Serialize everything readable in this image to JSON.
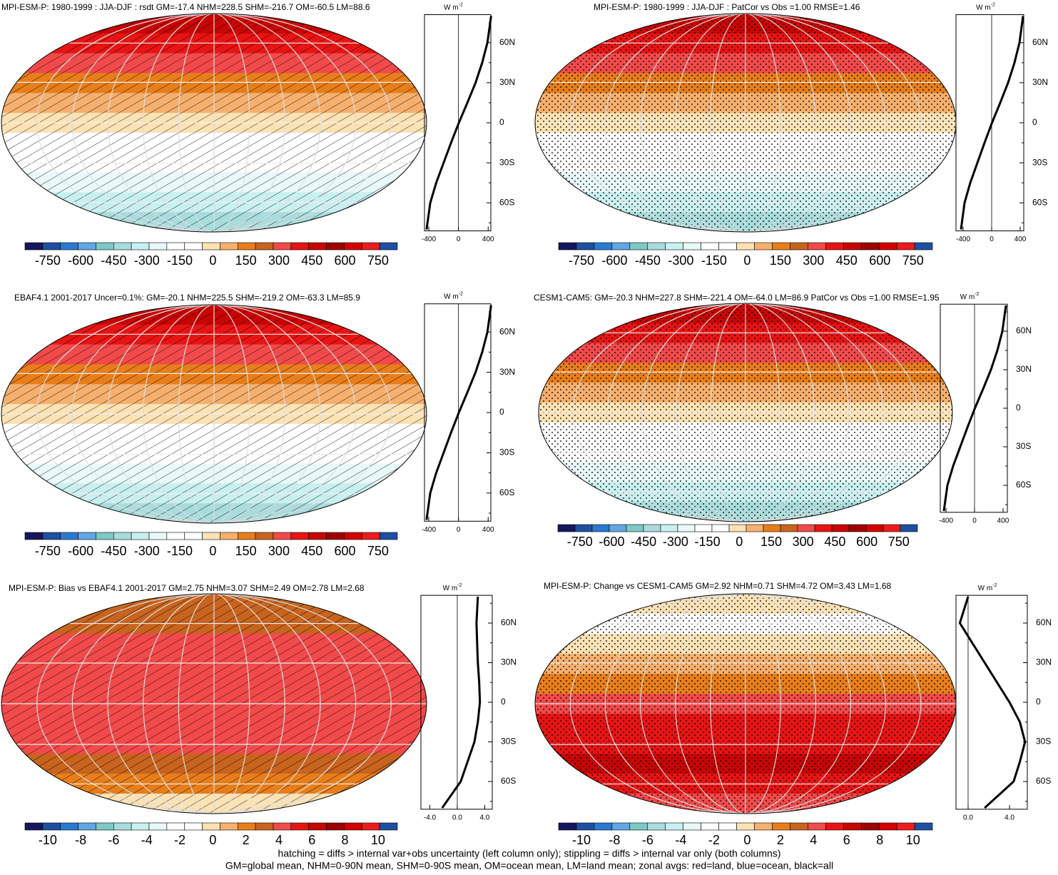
{
  "colorbar_colors": [
    "#16165e",
    "#1f4fa0",
    "#2a7bd0",
    "#62a6e2",
    "#7ec8c6",
    "#a9dcdc",
    "#c9f0f0",
    "#e9f9f9",
    "#ffffff",
    "#ffffff",
    "#fde2b4",
    "#f6b06e",
    "#e87e1a",
    "#c8641e",
    "#f24a4a",
    "#e81414",
    "#c80404",
    "#a00000",
    "#d40000",
    "#ec1c1c",
    "#1f4fa0"
  ],
  "zonal_unit": {
    "base": "W m",
    "exp": "-2"
  },
  "panels": [
    {
      "title": "MPI-ESM-P: 1980-1999 : JJA-DJF : rsdt GM=-17.4 NHM=228.5 SHM=-216.7 OM=-60.5 LM=88.6",
      "overlay": "hatch",
      "band_colors": [
        "#c80404",
        "#e81414",
        "#f24a4a",
        "#e87e1a",
        "#f6b06e",
        "#fde2b4",
        "#ffffff",
        "#ffffff",
        "#e9f9f9",
        "#c9f0f0",
        "#a9dcdc"
      ],
      "colorbar_labels": [
        -750,
        -600,
        -450,
        -300,
        -150,
        0,
        150,
        300,
        450,
        600,
        750
      ],
      "zonal": {
        "lat": [
          -80,
          -60,
          -45,
          -30,
          -15,
          0,
          15,
          30,
          45,
          60,
          80
        ],
        "values": [
          -430,
          -380,
          -300,
          -200,
          -100,
          5,
          120,
          230,
          320,
          390,
          440
        ],
        "color": "#000000",
        "xlim": [
          -458,
          436
        ],
        "ylim": [
          -81,
          81
        ],
        "xticks": [
          -400,
          0,
          400
        ],
        "yticks": [
          {
            "value": 60,
            "label": "60N"
          },
          {
            "value": 30,
            "label": "30N"
          },
          0,
          {
            "value": -30,
            "label": "30S"
          },
          {
            "value": -60,
            "label": "60S"
          }
        ]
      }
    },
    {
      "title": "MPI-ESM-P: 1980-1999 : JJA-DJF : PatCor vs Obs =1.00 RMSE=1.46",
      "overlay": "stipple",
      "band_colors": [
        "#c80404",
        "#e81414",
        "#f24a4a",
        "#e87e1a",
        "#f6b06e",
        "#fde2b4",
        "#ffffff",
        "#ffffff",
        "#e9f9f9",
        "#c9f0f0",
        "#a9dcdc"
      ],
      "colorbar_labels": [
        -750,
        -600,
        -450,
        -300,
        -150,
        0,
        150,
        300,
        450,
        600,
        750
      ],
      "zonal": {
        "lat": [
          -80,
          -60,
          -45,
          -30,
          -15,
          0,
          15,
          30,
          45,
          60,
          80
        ],
        "values": [
          -430,
          -380,
          -300,
          -200,
          -100,
          5,
          120,
          230,
          320,
          390,
          440
        ],
        "color": "#000000",
        "xlim": [
          -500,
          450
        ],
        "ylim": [
          -81,
          81
        ],
        "xticks": [
          -400,
          0,
          400
        ],
        "yticks": [
          {
            "value": 60,
            "label": "60N"
          },
          {
            "value": 30,
            "label": "30N"
          },
          0,
          {
            "value": -30,
            "label": "30S"
          },
          {
            "value": -60,
            "label": "60S"
          }
        ]
      }
    },
    {
      "title": "EBAF4.1 2001-2017 Uncer=0.1%: GM=-20.1 NHM=225.5 SHM=-219.2 OM=-63.3 LM=85.9",
      "overlay": "hatch",
      "band_colors": [
        "#c80404",
        "#e81414",
        "#f24a4a",
        "#e87e1a",
        "#f6b06e",
        "#fde2b4",
        "#ffffff",
        "#ffffff",
        "#e9f9f9",
        "#c9f0f0",
        "#a9dcdc"
      ],
      "colorbar_labels": [
        -750,
        -600,
        -450,
        -300,
        -150,
        0,
        150,
        300,
        450,
        600,
        750
      ],
      "zonal": {
        "lat": [
          -80,
          -60,
          -45,
          -30,
          -15,
          0,
          15,
          30,
          45,
          60,
          80
        ],
        "values": [
          -430,
          -380,
          -300,
          -200,
          -100,
          5,
          120,
          230,
          320,
          390,
          440
        ],
        "color": "#000000",
        "xlim": [
          -458,
          436
        ],
        "ylim": [
          -81,
          81
        ],
        "xticks": [
          -400,
          0,
          400
        ],
        "yticks": [
          {
            "value": 60,
            "label": "60N"
          },
          {
            "value": 30,
            "label": "30N"
          },
          0,
          {
            "value": -30,
            "label": "30S"
          },
          {
            "value": -60,
            "label": "60S"
          }
        ]
      }
    },
    {
      "title": "CESM1-CAM5: GM=-20.3 NHM=227.8 SHM=-221.4 OM=-64.0 LM=86.9 PatCor vs Obs =1.00 RMSE=1.95",
      "overlay": "stipple",
      "band_colors": [
        "#c80404",
        "#e81414",
        "#f24a4a",
        "#e87e1a",
        "#f6b06e",
        "#fde2b4",
        "#ffffff",
        "#ffffff",
        "#e9f9f9",
        "#c9f0f0",
        "#a9dcdc"
      ],
      "colorbar_labels": [
        -750,
        -600,
        -450,
        -300,
        -150,
        0,
        150,
        300,
        450,
        600,
        750
      ],
      "zonal": {
        "lat": [
          -80,
          -60,
          -45,
          -30,
          -15,
          0,
          15,
          30,
          45,
          60,
          80
        ],
        "values": [
          -430,
          -380,
          -300,
          -200,
          -100,
          5,
          120,
          230,
          320,
          390,
          440
        ],
        "color": "#000000",
        "xlim": [
          -480,
          460
        ],
        "ylim": [
          -81,
          81
        ],
        "xticks": [
          -400,
          0,
          400
        ],
        "yticks": [
          {
            "value": 60,
            "label": "60N"
          },
          {
            "value": 30,
            "label": "30N"
          },
          0,
          {
            "value": -30,
            "label": "30S"
          },
          {
            "value": -60,
            "label": "60S"
          }
        ]
      }
    },
    {
      "title": "MPI-ESM-P: Bias vs EBAF4.1 2001-2017 GM=2.75 NHM=3.07 SHM=2.49 OM=2.78 LM=2.68",
      "overlay": "hatch",
      "band_colors": [
        "#c8641e",
        "#c8641e",
        "#f24a4a",
        "#f24a4a",
        "#f24a4a",
        "#f24a4a",
        "#f24a4a",
        "#f24a4a",
        "#c8641e",
        "#e87e1a",
        "#fde2b4"
      ],
      "colorbar_labels": [
        -10,
        -8,
        -6,
        -4,
        -2,
        0,
        2,
        4,
        6,
        8,
        10
      ],
      "zonal": {
        "lat": [
          -80,
          -60,
          -45,
          -30,
          -15,
          0,
          15,
          30,
          45,
          60,
          80
        ],
        "values": [
          -2.2,
          0.5,
          1.5,
          2.5,
          3.0,
          3.3,
          3.2,
          3.0,
          2.9,
          2.8,
          3.0
        ],
        "color": "#000000",
        "xlim": [
          -5.3,
          5.1
        ],
        "ylim": [
          -81,
          81
        ],
        "xticks": [
          {
            "value": -4,
            "label": "-4.0"
          },
          {
            "value": 0,
            "label": "0.0"
          },
          {
            "value": 4,
            "label": "4.0"
          }
        ],
        "yticks": [
          {
            "value": 60,
            "label": "60N"
          },
          {
            "value": 30,
            "label": "30N"
          },
          0,
          {
            "value": -30,
            "label": "30S"
          },
          {
            "value": -60,
            "label": "60S"
          }
        ]
      }
    },
    {
      "title": "MPI-ESM-P: Change vs CESM1-CAM5 GM=2.92 NHM=0.71 SHM=4.72 OM=3.43 LM=1.68",
      "overlay": "stipple",
      "band_colors": [
        "#fde2b4",
        "#ffffff",
        "#fde2b4",
        "#f6b06e",
        "#e87e1a",
        "#f24a4a",
        "#e81414",
        "#e81414",
        "#c80404",
        "#e81414",
        "#f24a4a"
      ],
      "colorbar_labels": [
        -10,
        -8,
        -6,
        -4,
        -2,
        0,
        2,
        4,
        6,
        8,
        10
      ],
      "zonal": {
        "lat": [
          -80,
          -60,
          -45,
          -30,
          -15,
          0,
          15,
          30,
          45,
          60,
          80
        ],
        "values": [
          1.6,
          4.4,
          5.0,
          5.5,
          5.0,
          4.0,
          2.8,
          1.6,
          0.4,
          -0.8,
          0
        ],
        "color": "#000000",
        "xlim": [
          -1.17,
          5.72
        ],
        "ylim": [
          -81,
          81
        ],
        "xticks": [
          {
            "value": 0,
            "label": "0.0"
          },
          {
            "value": 4,
            "label": "4.0"
          }
        ],
        "yticks": [
          {
            "value": 60,
            "label": "60N"
          },
          {
            "value": 30,
            "label": "30N"
          },
          0,
          {
            "value": -30,
            "label": "30S"
          },
          {
            "value": -60,
            "label": "60S"
          }
        ]
      }
    }
  ],
  "footer": [
    "hatching = diffs > internal var+obs uncertainty (left column only); stippling = diffs > internal var only (both columns)",
    "GM=global mean, NHM=0-90N mean, SHM=0-90S mean, OM=ocean mean, LM=land mean; zonal avgs: red=land, blue=ocean, black=all"
  ]
}
